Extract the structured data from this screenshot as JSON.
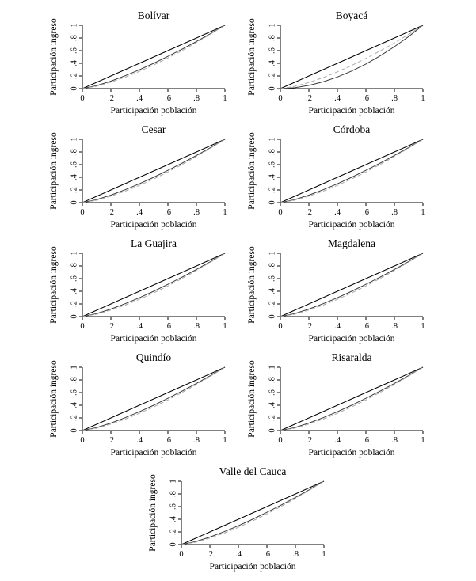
{
  "page": {
    "background": "#ffffff",
    "figure_description": "Grid of Lorenz curve plots by Colombian department"
  },
  "chart_data": {
    "type": "line",
    "xlabel": "Participación población",
    "ylabel": "Participación ingreso",
    "xlim": [
      0,
      1
    ],
    "ylim": [
      0,
      1
    ],
    "x_ticks": [
      "0",
      ".2",
      ".4",
      ".6",
      ".8",
      "1"
    ],
    "y_ticks": [
      "0",
      ".2",
      ".4",
      ".6",
      ".8",
      "1"
    ],
    "grid": "off",
    "legend": "none",
    "colors": {
      "equality": "#000000",
      "lorenz_solid": "#3a3a3a",
      "lorenz_dashed": "#aaaaaa"
    },
    "x": [
      0,
      0.1,
      0.2,
      0.3,
      0.4,
      0.5,
      0.6,
      0.7,
      0.8,
      0.9,
      1
    ],
    "layout_rows": [
      [
        "bolivar",
        "boyaca"
      ],
      [
        "cesar",
        "cordoba"
      ],
      [
        "la_guajira",
        "magdalena"
      ],
      [
        "quindio",
        "risaralda"
      ],
      [
        "valle_del_cauca"
      ]
    ],
    "panels": [
      {
        "id": "bolivar",
        "title": "Bolívar",
        "series": [
          {
            "name": "equality",
            "style": "solid",
            "values": [
              0,
              0.1,
              0.2,
              0.3,
              0.4,
              0.5,
              0.6,
              0.7,
              0.8,
              0.9,
              1
            ]
          },
          {
            "name": "lorenz_solid",
            "style": "solid",
            "values": [
              0,
              0.048,
              0.119,
              0.204,
              0.298,
              0.4,
              0.51,
              0.624,
              0.745,
              0.87,
              1
            ]
          },
          {
            "name": "lorenz_dashed",
            "style": "dashed",
            "values": [
              0,
              0.038,
              0.102,
              0.181,
              0.272,
              0.374,
              0.484,
              0.603,
              0.728,
              0.861,
              1
            ]
          }
        ]
      },
      {
        "id": "boyaca",
        "title": "Boyacá",
        "series": [
          {
            "name": "equality",
            "style": "solid",
            "values": [
              0,
              0.1,
              0.2,
              0.3,
              0.4,
              0.5,
              0.6,
              0.7,
              0.8,
              0.9,
              1
            ]
          },
          {
            "name": "lorenz_solid",
            "style": "solid",
            "values": [
              0,
              0.014,
              0.051,
              0.108,
              0.184,
              0.277,
              0.389,
              0.517,
              0.662,
              0.823,
              1
            ]
          },
          {
            "name": "lorenz_dashed",
            "style": "dashed",
            "values": [
              0,
              0.036,
              0.097,
              0.174,
              0.265,
              0.366,
              0.477,
              0.596,
              0.723,
              0.858,
              1
            ]
          }
        ]
      },
      {
        "id": "cesar",
        "title": "Cesar",
        "series": [
          {
            "name": "equality",
            "style": "solid",
            "values": [
              0,
              0.1,
              0.2,
              0.3,
              0.4,
              0.5,
              0.6,
              0.7,
              0.8,
              0.9,
              1
            ]
          },
          {
            "name": "lorenz_solid",
            "style": "solid",
            "values": [
              0,
              0.048,
              0.119,
              0.204,
              0.298,
              0.4,
              0.51,
              0.624,
              0.745,
              0.87,
              1
            ]
          },
          {
            "name": "lorenz_dashed",
            "style": "dashed",
            "values": [
              0,
              0.038,
              0.102,
              0.181,
              0.272,
              0.374,
              0.484,
              0.603,
              0.728,
              0.861,
              1
            ]
          }
        ]
      },
      {
        "id": "cordoba",
        "title": "Córdoba",
        "series": [
          {
            "name": "equality",
            "style": "solid",
            "values": [
              0,
              0.1,
              0.2,
              0.3,
              0.4,
              0.5,
              0.6,
              0.7,
              0.8,
              0.9,
              1
            ]
          },
          {
            "name": "lorenz_solid",
            "style": "solid",
            "values": [
              0,
              0.048,
              0.119,
              0.204,
              0.298,
              0.4,
              0.51,
              0.624,
              0.745,
              0.87,
              1
            ]
          },
          {
            "name": "lorenz_dashed",
            "style": "dashed",
            "values": [
              0,
              0.038,
              0.102,
              0.181,
              0.272,
              0.374,
              0.484,
              0.603,
              0.728,
              0.861,
              1
            ]
          }
        ]
      },
      {
        "id": "la_guajira",
        "title": "La Guajira",
        "series": [
          {
            "name": "equality",
            "style": "solid",
            "values": [
              0,
              0.1,
              0.2,
              0.3,
              0.4,
              0.5,
              0.6,
              0.7,
              0.8,
              0.9,
              1
            ]
          },
          {
            "name": "lorenz_solid",
            "style": "solid",
            "values": [
              0,
              0.048,
              0.119,
              0.204,
              0.298,
              0.4,
              0.51,
              0.624,
              0.745,
              0.87,
              1
            ]
          },
          {
            "name": "lorenz_dashed",
            "style": "dashed",
            "values": [
              0,
              0.038,
              0.102,
              0.181,
              0.272,
              0.374,
              0.484,
              0.603,
              0.728,
              0.861,
              1
            ]
          }
        ]
      },
      {
        "id": "magdalena",
        "title": "Magdalena",
        "series": [
          {
            "name": "equality",
            "style": "solid",
            "values": [
              0,
              0.1,
              0.2,
              0.3,
              0.4,
              0.5,
              0.6,
              0.7,
              0.8,
              0.9,
              1
            ]
          },
          {
            "name": "lorenz_solid",
            "style": "solid",
            "values": [
              0,
              0.048,
              0.119,
              0.204,
              0.298,
              0.4,
              0.51,
              0.624,
              0.745,
              0.87,
              1
            ]
          },
          {
            "name": "lorenz_dashed",
            "style": "dashed",
            "values": [
              0,
              0.038,
              0.102,
              0.181,
              0.272,
              0.374,
              0.484,
              0.603,
              0.728,
              0.861,
              1
            ]
          }
        ]
      },
      {
        "id": "quindio",
        "title": "Quindío",
        "series": [
          {
            "name": "equality",
            "style": "solid",
            "values": [
              0,
              0.1,
              0.2,
              0.3,
              0.4,
              0.5,
              0.6,
              0.7,
              0.8,
              0.9,
              1
            ]
          },
          {
            "name": "lorenz_solid",
            "style": "solid",
            "values": [
              0,
              0.048,
              0.119,
              0.204,
              0.298,
              0.4,
              0.51,
              0.624,
              0.745,
              0.87,
              1
            ]
          },
          {
            "name": "lorenz_dashed",
            "style": "dashed",
            "values": [
              0,
              0.038,
              0.102,
              0.181,
              0.272,
              0.374,
              0.484,
              0.603,
              0.728,
              0.861,
              1
            ]
          }
        ]
      },
      {
        "id": "risaralda",
        "title": "Risaralda",
        "series": [
          {
            "name": "equality",
            "style": "solid",
            "values": [
              0,
              0.1,
              0.2,
              0.3,
              0.4,
              0.5,
              0.6,
              0.7,
              0.8,
              0.9,
              1
            ]
          },
          {
            "name": "lorenz_solid",
            "style": "solid",
            "values": [
              0,
              0.048,
              0.119,
              0.204,
              0.298,
              0.4,
              0.51,
              0.624,
              0.745,
              0.87,
              1
            ]
          },
          {
            "name": "lorenz_dashed",
            "style": "dashed",
            "values": [
              0,
              0.038,
              0.102,
              0.181,
              0.272,
              0.374,
              0.484,
              0.603,
              0.728,
              0.861,
              1
            ]
          }
        ]
      },
      {
        "id": "valle_del_cauca",
        "title": "Valle del Cauca",
        "series": [
          {
            "name": "equality",
            "style": "solid",
            "values": [
              0,
              0.1,
              0.2,
              0.3,
              0.4,
              0.5,
              0.6,
              0.7,
              0.8,
              0.9,
              1
            ]
          },
          {
            "name": "lorenz_solid",
            "style": "solid",
            "values": [
              0,
              0.048,
              0.119,
              0.204,
              0.298,
              0.4,
              0.51,
              0.624,
              0.745,
              0.87,
              1
            ]
          },
          {
            "name": "lorenz_dashed",
            "style": "dashed",
            "values": [
              0,
              0.038,
              0.102,
              0.181,
              0.272,
              0.374,
              0.484,
              0.603,
              0.728,
              0.861,
              1
            ]
          }
        ]
      }
    ]
  }
}
